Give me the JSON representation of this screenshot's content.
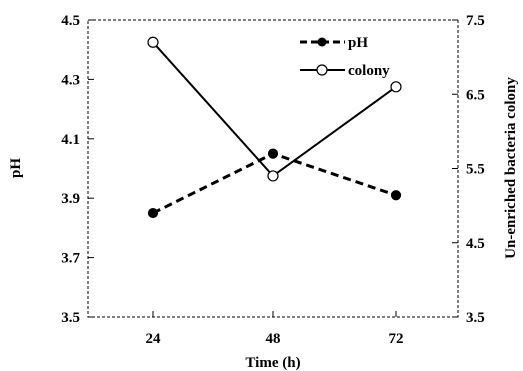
{
  "chart_data": {
    "type": "line",
    "categories": [
      "24",
      "48",
      "72"
    ],
    "xlabel": "Time (h)",
    "ylabel": "pH",
    "y2label": "Un-enriched bacteria colony",
    "ylim": [
      3.5,
      4.5
    ],
    "y2lim": [
      3.5,
      7.5
    ],
    "yticks": [
      "3.5",
      "3.7",
      "3.9",
      "4.1",
      "4.3",
      "4.5"
    ],
    "y2ticks": [
      "3.5",
      "4.5",
      "5.5",
      "6.5",
      "7.5"
    ],
    "legend_position": "top-right",
    "grid": false,
    "series": [
      {
        "name": "pH",
        "axis": "left",
        "style": "dashed",
        "marker": "filled-circle",
        "values": [
          3.85,
          4.05,
          3.91
        ]
      },
      {
        "name": "colony",
        "axis": "right",
        "style": "solid",
        "marker": "open-circle",
        "values": [
          7.2,
          5.4,
          6.6
        ]
      }
    ]
  }
}
